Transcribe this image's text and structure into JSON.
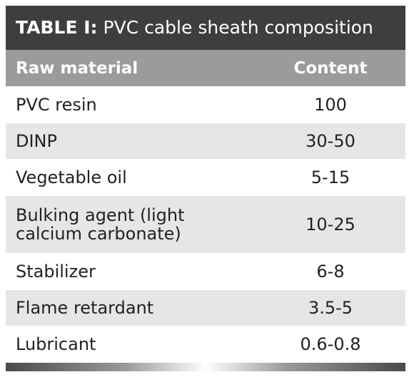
{
  "title": {
    "label": "TABLE I:",
    "text": "PVC cable sheath composition"
  },
  "table": {
    "header": [
      "Raw material",
      "Content"
    ],
    "rows": [
      [
        "PVC resin",
        "100"
      ],
      [
        "DINP",
        "30-50"
      ],
      [
        "Vegetable oil",
        "5-15"
      ],
      [
        "Bulking agent (light calcium carbonate)",
        "10-25"
      ],
      [
        "Stabilizer",
        "6-8"
      ],
      [
        "Flame retardant",
        "3.5-5"
      ],
      [
        "Lubricant",
        "0.6-0.8"
      ]
    ]
  }
}
